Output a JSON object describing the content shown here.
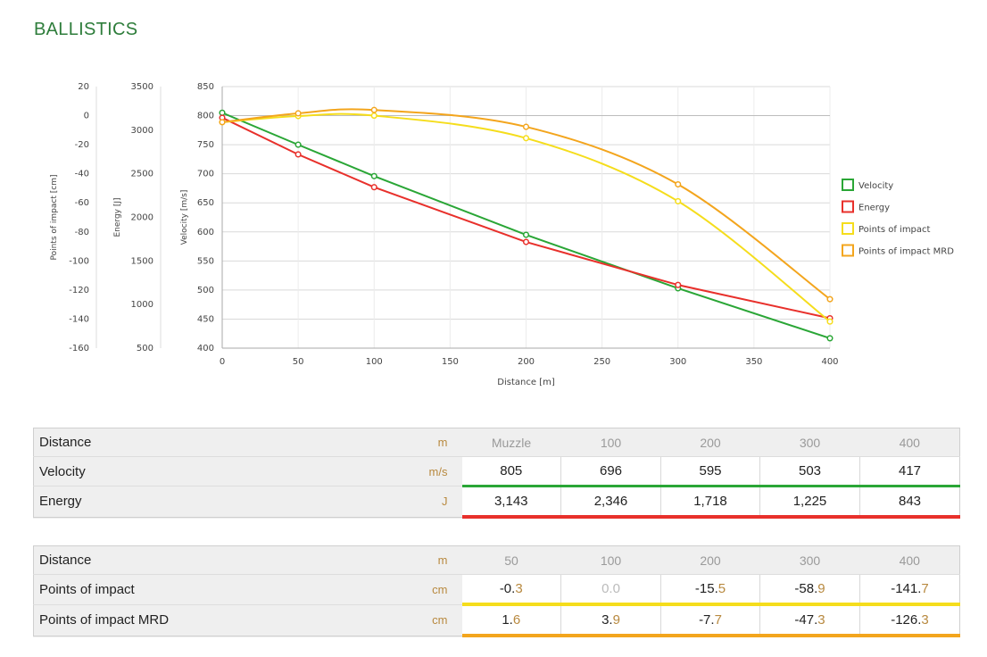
{
  "page": {
    "title": "BALLISTICS"
  },
  "chart_data": {
    "type": "line",
    "xlabel": "Distance [m]",
    "xlim": [
      0,
      400
    ],
    "xticks": [
      0,
      50,
      100,
      150,
      200,
      250,
      300,
      350,
      400
    ],
    "grid": true,
    "legend_position": "right",
    "axes": {
      "velocity": {
        "label": "Velocity [m/s]",
        "range": [
          400,
          850
        ],
        "ticks": [
          400,
          450,
          500,
          550,
          600,
          650,
          700,
          750,
          800,
          850
        ]
      },
      "energy": {
        "label": "Energy [J]",
        "range": [
          500,
          3500
        ],
        "ticks": [
          500,
          1000,
          1500,
          2000,
          2500,
          3000,
          3500
        ]
      },
      "impact": {
        "label": "Points of impact [cm]",
        "range": [
          -160,
          20
        ],
        "ticks": [
          -160,
          -140,
          -120,
          -100,
          -80,
          -60,
          -40,
          -20,
          0,
          20
        ]
      }
    },
    "series": [
      {
        "name": "Velocity",
        "axis": "velocity",
        "color": "#2aa636",
        "x": [
          0,
          50,
          100,
          200,
          300,
          400
        ],
        "y": [
          805,
          750,
          696,
          595,
          503,
          417
        ]
      },
      {
        "name": "Energy",
        "axis": "energy",
        "color": "#e8302b",
        "x": [
          0,
          50,
          100,
          200,
          300,
          400
        ],
        "y": [
          3143,
          2722,
          2346,
          1718,
          1225,
          843
        ]
      },
      {
        "name": "Points of impact",
        "axis": "impact",
        "color": "#f5dd1c",
        "x": [
          0,
          50,
          100,
          200,
          300,
          400
        ],
        "y": [
          -4.5,
          -0.3,
          0.0,
          -15.5,
          -58.9,
          -141.7
        ]
      },
      {
        "name": "Points of impact MRD",
        "axis": "impact",
        "color": "#f3a51d",
        "x": [
          0,
          50,
          100,
          200,
          300,
          400
        ],
        "y": [
          -4.5,
          1.6,
          3.9,
          -7.7,
          -47.3,
          -126.3
        ]
      }
    ]
  },
  "table1": {
    "header": {
      "label": "Distance",
      "unit": "m",
      "cols": [
        "Muzzle",
        "100",
        "200",
        "300",
        "400"
      ]
    },
    "rows": [
      {
        "label": "Velocity",
        "unit": "m/s",
        "values": [
          "805",
          "696",
          "595",
          "503",
          "417"
        ],
        "color": "#2aa636"
      },
      {
        "label": "Energy",
        "unit": "J",
        "values": [
          "3,143",
          "2,346",
          "1,718",
          "1,225",
          "843"
        ],
        "color": "#e8302b"
      }
    ]
  },
  "table2": {
    "header": {
      "label": "Distance",
      "unit": "m",
      "cols": [
        "50",
        "100",
        "200",
        "300",
        "400"
      ]
    },
    "rows": [
      {
        "label": "Points of impact",
        "unit": "cm",
        "values": [
          "-0.3",
          "0.0",
          "-15.5",
          "-58.9",
          "-141.7"
        ],
        "color": "#f5dd1c"
      },
      {
        "label": "Points of impact MRD",
        "unit": "cm",
        "values": [
          "1.6",
          "3.9",
          "-7.7",
          "-47.3",
          "-126.3"
        ],
        "color": "#f3a51d"
      }
    ]
  }
}
